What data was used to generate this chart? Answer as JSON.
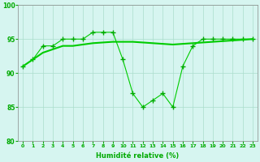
{
  "x": [
    0,
    1,
    2,
    3,
    4,
    5,
    6,
    7,
    8,
    9,
    10,
    11,
    12,
    13,
    14,
    15,
    16,
    17,
    18,
    19,
    20,
    21,
    22,
    23
  ],
  "y_main": [
    91,
    92,
    94,
    94,
    95,
    95,
    95,
    96,
    96,
    96,
    92,
    87,
    85,
    86,
    87,
    85,
    91,
    94,
    95,
    95,
    95,
    95,
    95,
    95
  ],
  "y_smooth": [
    91,
    92,
    93,
    93.5,
    94,
    94,
    94.2,
    94.4,
    94.5,
    94.6,
    94.6,
    94.6,
    94.5,
    94.4,
    94.3,
    94.2,
    94.3,
    94.4,
    94.5,
    94.6,
    94.7,
    94.8,
    94.9,
    95
  ],
  "line_color": "#00CC00",
  "marker_color": "#00AA00",
  "bg_color": "#D6F5F0",
  "grid_color": "#AADDCC",
  "xlabel": "Humidité relative (%)",
  "xlabel_color": "#00AA00",
  "tick_color": "#00AA00",
  "ylim": [
    80,
    100
  ],
  "xlim": [
    -0.5,
    23.5
  ],
  "yticks": [
    80,
    85,
    90,
    95,
    100
  ],
  "xticks": [
    0,
    1,
    2,
    3,
    4,
    5,
    6,
    7,
    8,
    9,
    10,
    11,
    12,
    13,
    14,
    15,
    16,
    17,
    18,
    19,
    20,
    21,
    22,
    23
  ]
}
